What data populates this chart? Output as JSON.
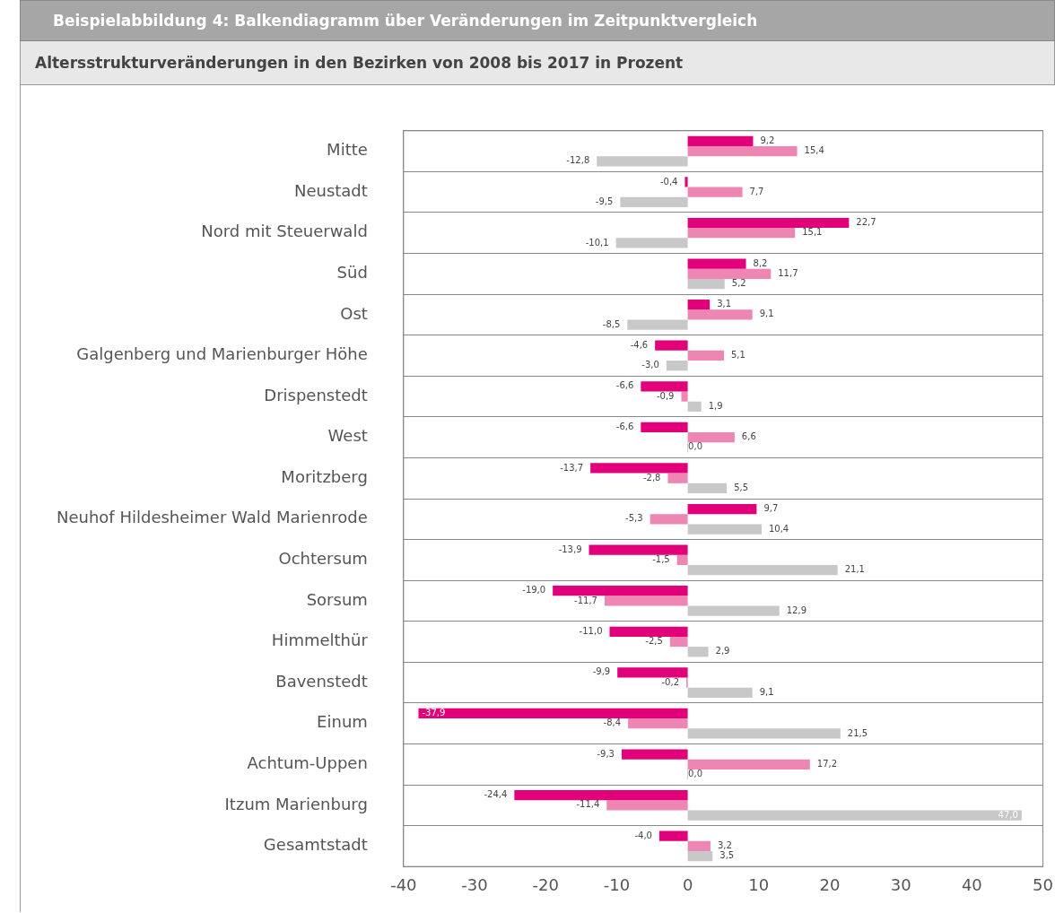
{
  "chart_data": {
    "type": "bar",
    "orientation": "horizontal",
    "title": "Beispielabbildung 4: Balkendiagramm über Veränderungen im Zeitpunktvergleich",
    "subtitle": "Altersstrukturveränderungen in den Bezirken von 2008 bis 2017 in Prozent",
    "categories": [
      "Mitte",
      "Neustadt",
      "Nord mit Steuerwald",
      "Süd",
      "Ost",
      "Galgenberg und Marienburger Höhe",
      "Drispenstedt",
      "West",
      "Moritzberg",
      "Neuhof Hildesheimer Wald Marienrode",
      "Ochtersum",
      "Sorsum",
      "Himmelthür",
      "Bavenstedt",
      "Einum",
      "Achtum-Uppen",
      "Itzum Marienburg",
      "Gesamtstadt"
    ],
    "series": [
      {
        "color": "#e2007a",
        "values": [
          9.2,
          -0.4,
          22.7,
          8.2,
          3.1,
          -4.6,
          -6.6,
          -6.6,
          -13.7,
          9.7,
          -13.9,
          -19.0,
          -11.0,
          -9.9,
          -37.9,
          -9.3,
          -24.4,
          -4.0
        ],
        "value_labels": [
          "9,2",
          "-0,4",
          "22,7",
          "8,2",
          "3,1",
          "-4,6",
          "-6,6",
          "-6,6",
          "-13,7",
          "9,7",
          "-13,9",
          "-19,0",
          "-11,0",
          "-9,9",
          "-37,9",
          "-9,3",
          "-24,4",
          "-4,0"
        ]
      },
      {
        "color": "#ee86b4",
        "values": [
          15.4,
          7.7,
          15.1,
          11.7,
          9.1,
          5.1,
          -0.9,
          6.6,
          -2.8,
          -5.3,
          -1.5,
          -11.7,
          -2.5,
          -0.2,
          -8.4,
          17.2,
          -11.4,
          3.2
        ],
        "value_labels": [
          "15,4",
          "7,7",
          "15,1",
          "11,7",
          "9,1",
          "5,1",
          "-0,9",
          "6,6",
          "-2,8",
          "-5,3",
          "-1,5",
          "-11,7",
          "-2,5",
          "-0,2",
          "-8,4",
          "17,2",
          "-11,4",
          "3,2"
        ]
      },
      {
        "color": "#c8c8c8",
        "values": [
          -12.8,
          -9.5,
          -10.1,
          5.2,
          -8.5,
          -3.0,
          1.9,
          0.0,
          5.5,
          10.4,
          21.1,
          12.9,
          2.9,
          9.1,
          21.5,
          0.0,
          47.0,
          3.5
        ],
        "value_labels": [
          "-12,8",
          "-9,5",
          "-10,1",
          "5,2",
          "-8,5",
          "-3,0",
          "1,9",
          "0,0",
          "5,5",
          "10,4",
          "21,1",
          "12,9",
          "2,9",
          "9,1",
          "21,5",
          "0,0",
          "47,0",
          "3,5"
        ]
      }
    ],
    "xlim": [
      -40,
      50
    ],
    "xticks": [
      -40,
      -30,
      -20,
      -10,
      0,
      10,
      20,
      30,
      40,
      50
    ],
    "grid": "y"
  }
}
